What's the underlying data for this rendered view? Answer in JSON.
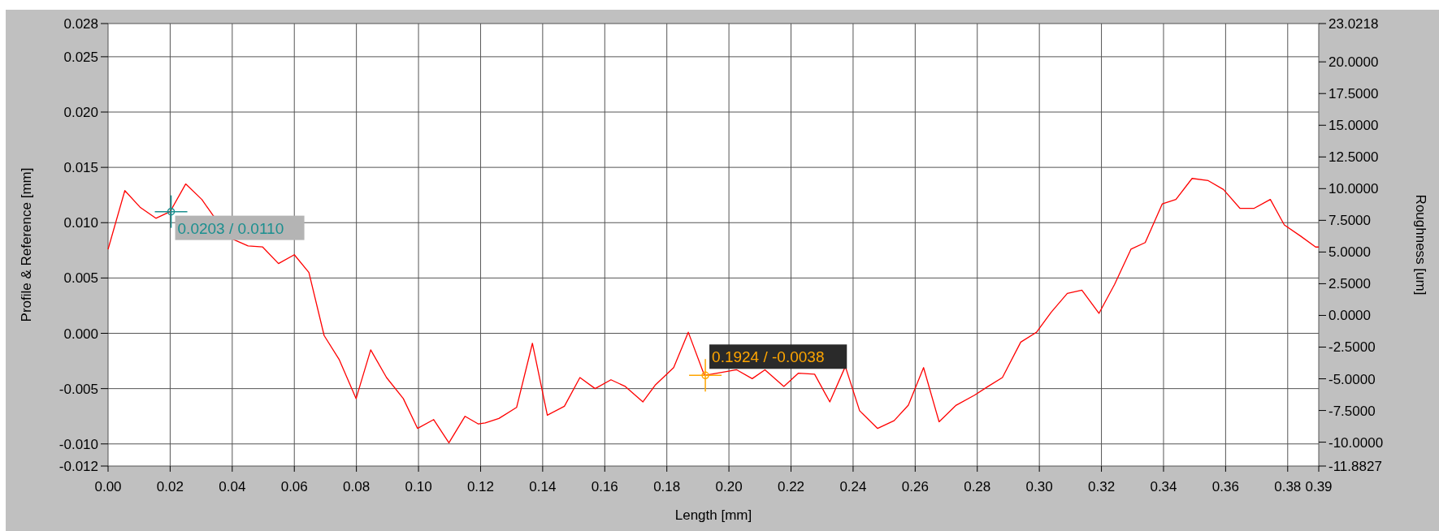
{
  "chart_data": {
    "type": "line",
    "xlabel": "Length [mm]",
    "ylabel": "Profile & Reference [mm]",
    "y2label": "Roughness [um]",
    "xlim": [
      0,
      0.39
    ],
    "xticks": [
      {
        "value": 0,
        "label": "0.00"
      },
      {
        "value": 0.02,
        "label": "0.02"
      },
      {
        "value": 0.04,
        "label": "0.04"
      },
      {
        "value": 0.06,
        "label": "0.06"
      },
      {
        "value": 0.08,
        "label": "0.08"
      },
      {
        "value": 0.1,
        "label": "0.10"
      },
      {
        "value": 0.12,
        "label": "0.12"
      },
      {
        "value": 0.14,
        "label": "0.14"
      },
      {
        "value": 0.16,
        "label": "0.16"
      },
      {
        "value": 0.18,
        "label": "0.18"
      },
      {
        "value": 0.2,
        "label": "0.20"
      },
      {
        "value": 0.22,
        "label": "0.22"
      },
      {
        "value": 0.24,
        "label": "0.24"
      },
      {
        "value": 0.26,
        "label": "0.26"
      },
      {
        "value": 0.28,
        "label": "0.28"
      },
      {
        "value": 0.3,
        "label": "0.30"
      },
      {
        "value": 0.32,
        "label": "0.32"
      },
      {
        "value": 0.34,
        "label": "0.34"
      },
      {
        "value": 0.36,
        "label": "0.36"
      },
      {
        "value": 0.38,
        "label": "0.38"
      },
      {
        "value": 0.39,
        "label": "0.39"
      }
    ],
    "ylim": [
      -0.012,
      0.028
    ],
    "yticks": [
      {
        "value": 0.028,
        "label": "0.028"
      },
      {
        "value": 0.025,
        "label": "0.025"
      },
      {
        "value": 0.02,
        "label": "0.020"
      },
      {
        "value": 0.015,
        "label": "0.015"
      },
      {
        "value": 0.01,
        "label": "0.010"
      },
      {
        "value": 0.005,
        "label": "0.005"
      },
      {
        "value": 0,
        "label": "0.000"
      },
      {
        "value": -0.005,
        "label": "-0.005"
      },
      {
        "value": -0.01,
        "label": "-0.010"
      },
      {
        "value": -0.012,
        "label": "-0.012"
      }
    ],
    "y2lim": [
      -11.8827,
      23.0218
    ],
    "y2ticks": [
      {
        "value": 23.0218,
        "label": "23.0218"
      },
      {
        "value": 20,
        "label": "20.0000"
      },
      {
        "value": 17.5,
        "label": "17.5000"
      },
      {
        "value": 15,
        "label": "15.0000"
      },
      {
        "value": 12.5,
        "label": "12.5000"
      },
      {
        "value": 10,
        "label": "10.0000"
      },
      {
        "value": 7.5,
        "label": "7.5000"
      },
      {
        "value": 5,
        "label": "5.0000"
      },
      {
        "value": 2.5,
        "label": "2.5000"
      },
      {
        "value": 0,
        "label": "0.0000"
      },
      {
        "value": -2.5,
        "label": "-2.5000"
      },
      {
        "value": -5,
        "label": "-5.0000"
      },
      {
        "value": -7.5,
        "label": "-7.5000"
      },
      {
        "value": -10,
        "label": "-10.0000"
      },
      {
        "value": -11.8827,
        "label": "-11.8827"
      }
    ],
    "grid": true,
    "marker": "none",
    "line_style": "solid",
    "annotations": [
      {
        "text": "0.0203 / 0.0110",
        "x": 0.0203,
        "y": 0.011
      },
      {
        "text": "0.1924 / -0.0038",
        "x": 0.1924,
        "y": -0.0038
      }
    ],
    "series": [
      {
        "color": "#ff0000",
        "x": [
          0,
          0.0054,
          0.0103,
          0.0154,
          0.02,
          0.025,
          0.0302,
          0.0337,
          0.0402,
          0.0451,
          0.0498,
          0.0549,
          0.06,
          0.0647,
          0.0696,
          0.0745,
          0.0799,
          0.0846,
          0.0897,
          0.0951,
          0.0997,
          0.1049,
          0.1098,
          0.115,
          0.1193,
          0.1215,
          0.1259,
          0.1316,
          0.1367,
          0.1415,
          0.147,
          0.152,
          0.1569,
          0.162,
          0.1666,
          0.1723,
          0.1762,
          0.1822,
          0.1869,
          0.1921,
          0.2025,
          0.2075,
          0.2116,
          0.2177,
          0.2224,
          0.2276,
          0.2325,
          0.2375,
          0.2421,
          0.2479,
          0.2532,
          0.2578,
          0.2627,
          0.2677,
          0.2732,
          0.2791,
          0.2835,
          0.2881,
          0.294,
          0.2991,
          0.3038,
          0.309,
          0.3137,
          0.3192,
          0.3242,
          0.3295,
          0.3341,
          0.3396,
          0.344,
          0.3492,
          0.3544,
          0.3593,
          0.3646,
          0.3692,
          0.3744,
          0.3789,
          0.3841,
          0.389,
          0.39
        ],
        "values": [
          0.0076,
          0.0129,
          0.0114,
          0.0104,
          0.011,
          0.0135,
          0.0121,
          0.0107,
          0.0085,
          0.0079,
          0.0078,
          0.0063,
          0.0071,
          0.0055,
          -0.0002,
          -0.0024,
          -0.0059,
          -0.0015,
          -0.004,
          -0.0059,
          -0.0086,
          -0.0078,
          -0.0099,
          -0.0075,
          -0.0082,
          -0.0081,
          -0.0077,
          -0.0067,
          -0.0009,
          -0.0074,
          -0.0066,
          -0.004,
          -0.005,
          -0.0042,
          -0.0048,
          -0.0062,
          -0.0047,
          -0.0031,
          0.0001,
          -0.0038,
          -0.0033,
          -0.0041,
          -0.0033,
          -0.0048,
          -0.0036,
          -0.0037,
          -0.0062,
          -0.003,
          -0.007,
          -0.0086,
          -0.0079,
          -0.0065,
          -0.0031,
          -0.008,
          -0.0065,
          -0.0056,
          -0.0048,
          -0.004,
          -0.0008,
          0.0001,
          0.0019,
          0.0036,
          0.0039,
          0.0018,
          0.0044,
          0.0076,
          0.0082,
          0.0117,
          0.0121,
          0.014,
          0.0138,
          0.013,
          0.0113,
          0.0113,
          0.0121,
          0.0098,
          0.0088,
          0.0078,
          0.0078
        ]
      }
    ]
  }
}
